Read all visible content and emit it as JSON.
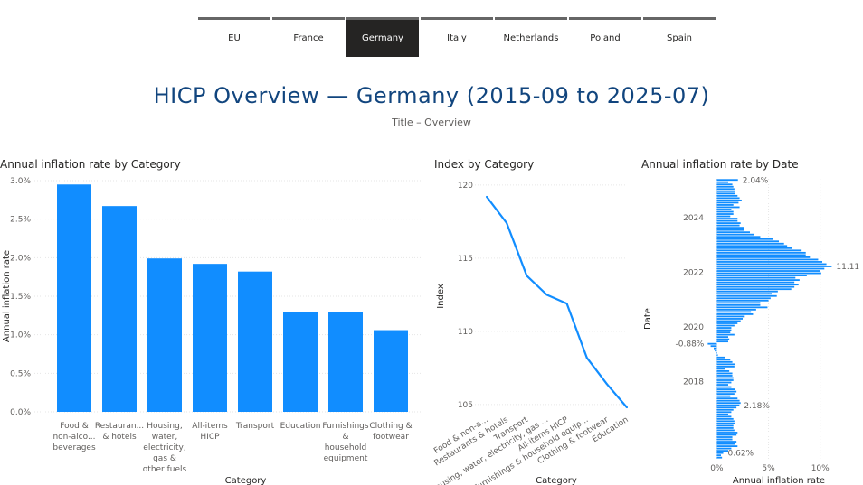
{
  "tabs": [
    {
      "label": "EU",
      "active": false
    },
    {
      "label": "France",
      "active": false
    },
    {
      "label": "Germany",
      "active": true
    },
    {
      "label": "Italy",
      "active": false
    },
    {
      "label": "Netherlands",
      "active": false
    },
    {
      "label": "Poland",
      "active": false
    },
    {
      "label": "Spain",
      "active": false
    }
  ],
  "header": {
    "title": "HICP Overview — Germany  (2015-09 to 2025-07)",
    "subtitle": "Title – Overview"
  },
  "colors": {
    "accent": "#118dff",
    "line": "#118dff",
    "title": "#11457e"
  },
  "chart_data": [
    {
      "type": "bar",
      "title": "Annual inflation rate by Category",
      "xlabel": "Category",
      "ylabel": "Annual inflation rate",
      "ylim": [
        0,
        3.0
      ],
      "yticks": [
        "0.0%",
        "0.5%",
        "1.0%",
        "1.5%",
        "2.0%",
        "2.5%",
        "3.0%"
      ],
      "categories": [
        [
          "Food &",
          "non-alco...",
          "beverages"
        ],
        [
          "Restauran...",
          "& hotels"
        ],
        [
          "Housing,",
          "water,",
          "electricity,",
          "gas &",
          "other fuels"
        ],
        [
          "All-items",
          "HICP"
        ],
        [
          "Transport"
        ],
        [
          "Education"
        ],
        [
          "Furnishings",
          "&",
          "household",
          "equipment"
        ],
        [
          "Clothing &",
          "footwear"
        ]
      ],
      "values": [
        2.95,
        2.67,
        1.99,
        1.92,
        1.82,
        1.3,
        1.29,
        1.06
      ]
    },
    {
      "type": "line",
      "title": "Index by Category",
      "xlabel": "Category",
      "ylabel": "Index",
      "ylim": [
        104.5,
        120.3
      ],
      "yticks": [
        105,
        110,
        115,
        120
      ],
      "categories": [
        "Food & non-a...",
        "Restaurants & hotels",
        "Transport",
        "Housing, water, electricity, gas ...",
        "All-items HICP",
        "Furnishings & household equip...",
        "Clothing & footwear",
        "Education"
      ],
      "values": [
        119.2,
        117.4,
        113.8,
        112.5,
        111.9,
        108.2,
        106.4,
        104.8
      ]
    },
    {
      "type": "bar",
      "orientation": "horizontal",
      "title": "Annual inflation rate by Date",
      "xlabel": "Annual inflation rate",
      "ylabel": "Date",
      "xlim": [
        -1,
        13
      ],
      "xticks": [
        "0%",
        "5%",
        "10%"
      ],
      "year_ticks": [
        "2018",
        "2020",
        "2022",
        "2024"
      ],
      "data_labels": [
        {
          "value": 2.04,
          "label": "2.04%"
        },
        {
          "value": 11.11,
          "label": "11.11%"
        },
        {
          "value": -0.88,
          "label": "-0.88%"
        },
        {
          "value": 2.18,
          "label": "2.18%"
        },
        {
          "value": 0.62,
          "label": "0.62%"
        }
      ],
      "values": [
        2.04,
        1.1,
        1.5,
        1.6,
        1.7,
        1.8,
        1.8,
        2.0,
        2.2,
        2.4,
        2.1,
        1.6,
        2.2,
        1.4,
        1.6,
        1.6,
        1.3,
        2.0,
        2.0,
        2.3,
        2.2,
        2.6,
        2.6,
        3.2,
        3.6,
        4.2,
        5.4,
        6.0,
        6.5,
        6.8,
        7.3,
        8.2,
        8.6,
        8.6,
        9.0,
        9.8,
        10.2,
        10.6,
        11.11,
        10.4,
        10.0,
        10.1,
        8.7,
        7.6,
        8.0,
        7.5,
        7.9,
        7.5,
        7.2,
        5.9,
        5.3,
        5.8,
        5.2,
        5.0,
        4.2,
        4.2,
        4.9,
        3.8,
        3.3,
        3.5,
        2.7,
        2.5,
        2.3,
        2.0,
        1.7,
        1.4,
        1.4,
        1.3,
        1.7,
        1.1,
        1.2,
        1.1,
        -0.88,
        -0.6,
        -0.3,
        -0.2,
        0.0,
        0.1,
        0.8,
        1.3,
        1.5,
        1.8,
        1.7,
        0.8,
        1.2,
        1.5,
        1.5,
        1.6,
        1.6,
        1.4,
        1.1,
        1.4,
        1.8,
        1.9,
        1.7,
        1.3,
        2.0,
        2.2,
        2.3,
        2.18,
        1.9,
        1.6,
        1.4,
        1.1,
        1.4,
        1.6,
        1.7,
        1.8,
        1.6,
        1.6,
        1.7,
        2.0,
        1.9,
        1.5,
        1.5,
        1.9,
        1.8,
        2.0,
        1.4,
        1.1,
        0.62,
        0.4,
        0.5
      ]
    }
  ]
}
